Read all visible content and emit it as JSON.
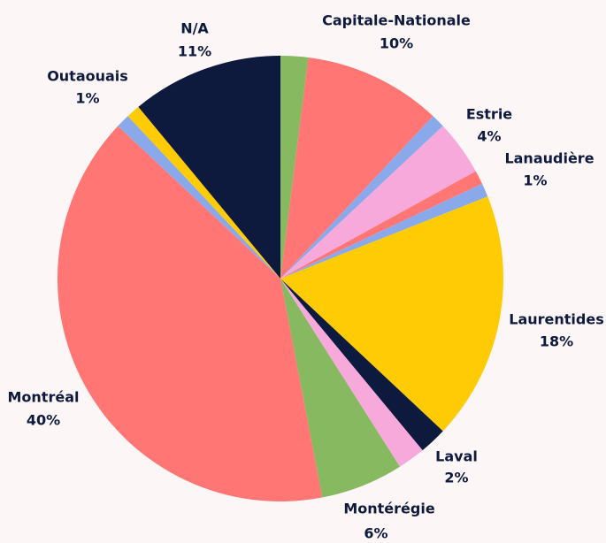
{
  "chart_data": {
    "type": "pie",
    "categories": [
      null,
      "Capitale-Nationale",
      null,
      "Estrie",
      "Lanaudière",
      null,
      "Laurentides",
      "Laval",
      null,
      "Montérégie",
      "Montréal",
      null,
      "Outaouais",
      "N/A"
    ],
    "values": [
      2,
      10,
      1,
      4,
      1,
      1,
      18,
      2,
      2,
      6,
      40,
      1,
      1,
      11
    ],
    "value_labels": [
      null,
      "10%",
      null,
      "4%",
      "1%",
      null,
      "18%",
      "2%",
      null,
      "6%",
      "40%",
      null,
      "1%",
      "11%"
    ],
    "colors": [
      "#86b960",
      "#ff7674",
      "#8aa9ea",
      "#f7a9dc",
      "#ff7674",
      "#8aa9ea",
      "#ffcb05",
      "#0e1a3d",
      "#f7a9dc",
      "#86b960",
      "#ff7674",
      "#8aa9ea",
      "#ffcb05",
      "#0e1a3d"
    ]
  }
}
